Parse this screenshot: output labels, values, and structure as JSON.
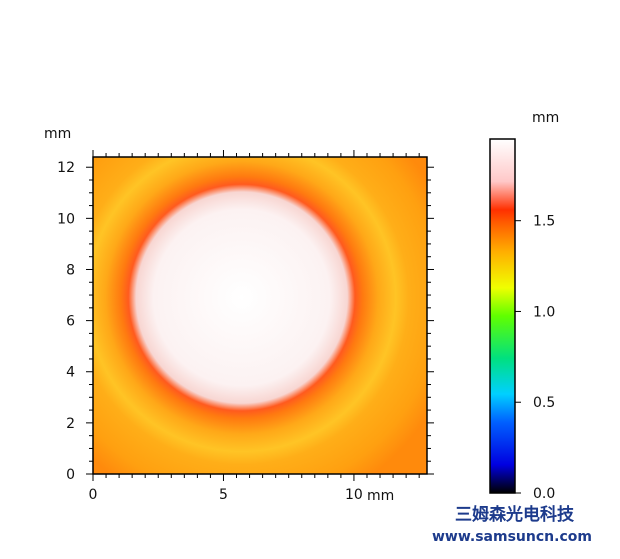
{
  "chart_data": {
    "type": "heatmap",
    "x_unit": "mm",
    "y_unit": "mm",
    "colorbar_unit": "mm",
    "xlim": [
      0,
      12.8
    ],
    "ylim": [
      0,
      12.4
    ],
    "x_ticks": [
      "0",
      "5",
      "10"
    ],
    "y_ticks": [
      "0",
      "2",
      "4",
      "6",
      "8",
      "10",
      "12"
    ],
    "colorbar_ticks": [
      "0.0",
      "0.5",
      "1.0",
      "1.5"
    ],
    "colorbar_range": [
      0.0,
      1.95
    ],
    "colormap": [
      "#000000",
      "#0000ff",
      "#00c8ff",
      "#00e070",
      "#80ff00",
      "#ffff00",
      "#ffb000",
      "#ff5000",
      "#ffd0d0",
      "#ffffff"
    ],
    "feature": {
      "shape": "circle",
      "center_mm": [
        5.7,
        6.9
      ],
      "radius_mm": 4.6,
      "inner_height_mm": 1.95,
      "rim_height_mm": 1.55,
      "background_height_mm": 1.3
    }
  },
  "watermark": {
    "company": "三姆森光电科技",
    "url": "www.samsuncn.com"
  }
}
